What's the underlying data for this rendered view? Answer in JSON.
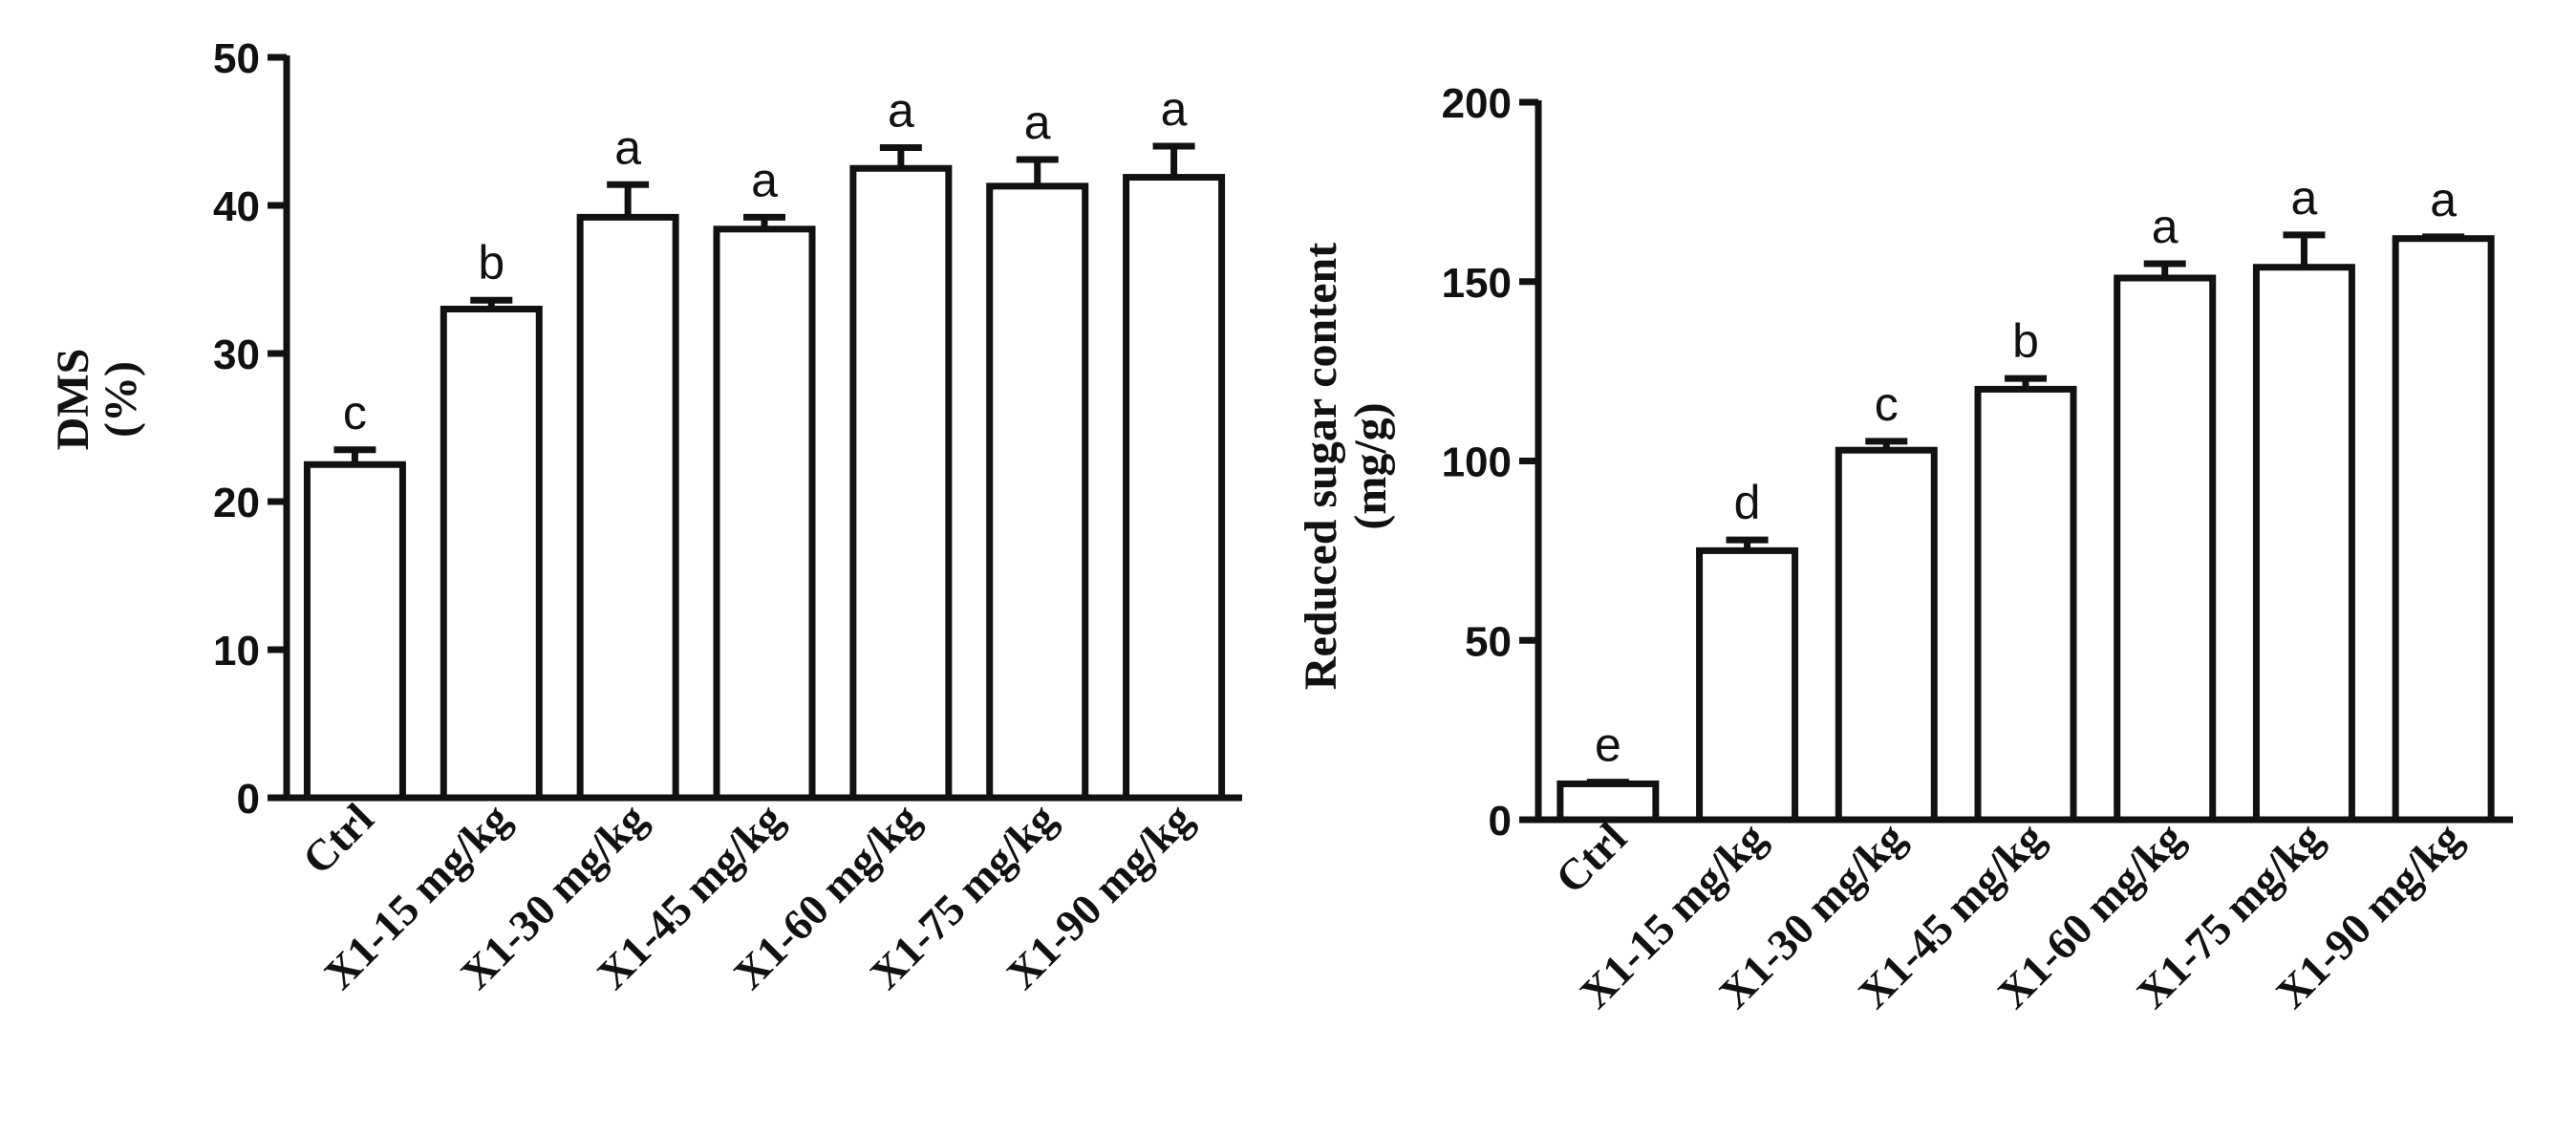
{
  "chart_data": [
    {
      "type": "bar",
      "ylabel": [
        "DMS",
        "(%)"
      ],
      "ylim": [
        0,
        50
      ],
      "yticks": [
        0,
        10,
        20,
        30,
        40,
        50
      ],
      "categories": [
        "Ctrl",
        "X1-15 mg/kg",
        "X1-30 mg/kg",
        "X1-45 mg/kg",
        "X1-60 mg/kg",
        "X1-75 mg/kg",
        "X1-90 mg/kg"
      ],
      "values": [
        22.5,
        33.0,
        39.2,
        38.4,
        42.5,
        41.3,
        41.9
      ],
      "errors": [
        1.0,
        0.6,
        2.2,
        0.8,
        1.4,
        1.8,
        2.1
      ],
      "significance": [
        "c",
        "b",
        "a",
        "a",
        "a",
        "a",
        "a"
      ]
    },
    {
      "type": "bar",
      "ylabel": [
        "Reduced  sugar content",
        "(mg/g)"
      ],
      "ylim": [
        0,
        200
      ],
      "yticks": [
        0,
        50,
        100,
        150,
        200
      ],
      "categories": [
        "Ctrl",
        "X1-15 mg/kg",
        "X1-30 mg/kg",
        "X1-45 mg/kg",
        "X1-60 mg/kg",
        "X1-75 mg/kg",
        "X1-90 mg/kg"
      ],
      "values": [
        10,
        75,
        103,
        120,
        151,
        154,
        162
      ],
      "errors": [
        0.5,
        3,
        2.5,
        3,
        4,
        9,
        0.5
      ],
      "significance": [
        "e",
        "d",
        "c",
        "b",
        "a",
        "a",
        "a"
      ]
    }
  ]
}
